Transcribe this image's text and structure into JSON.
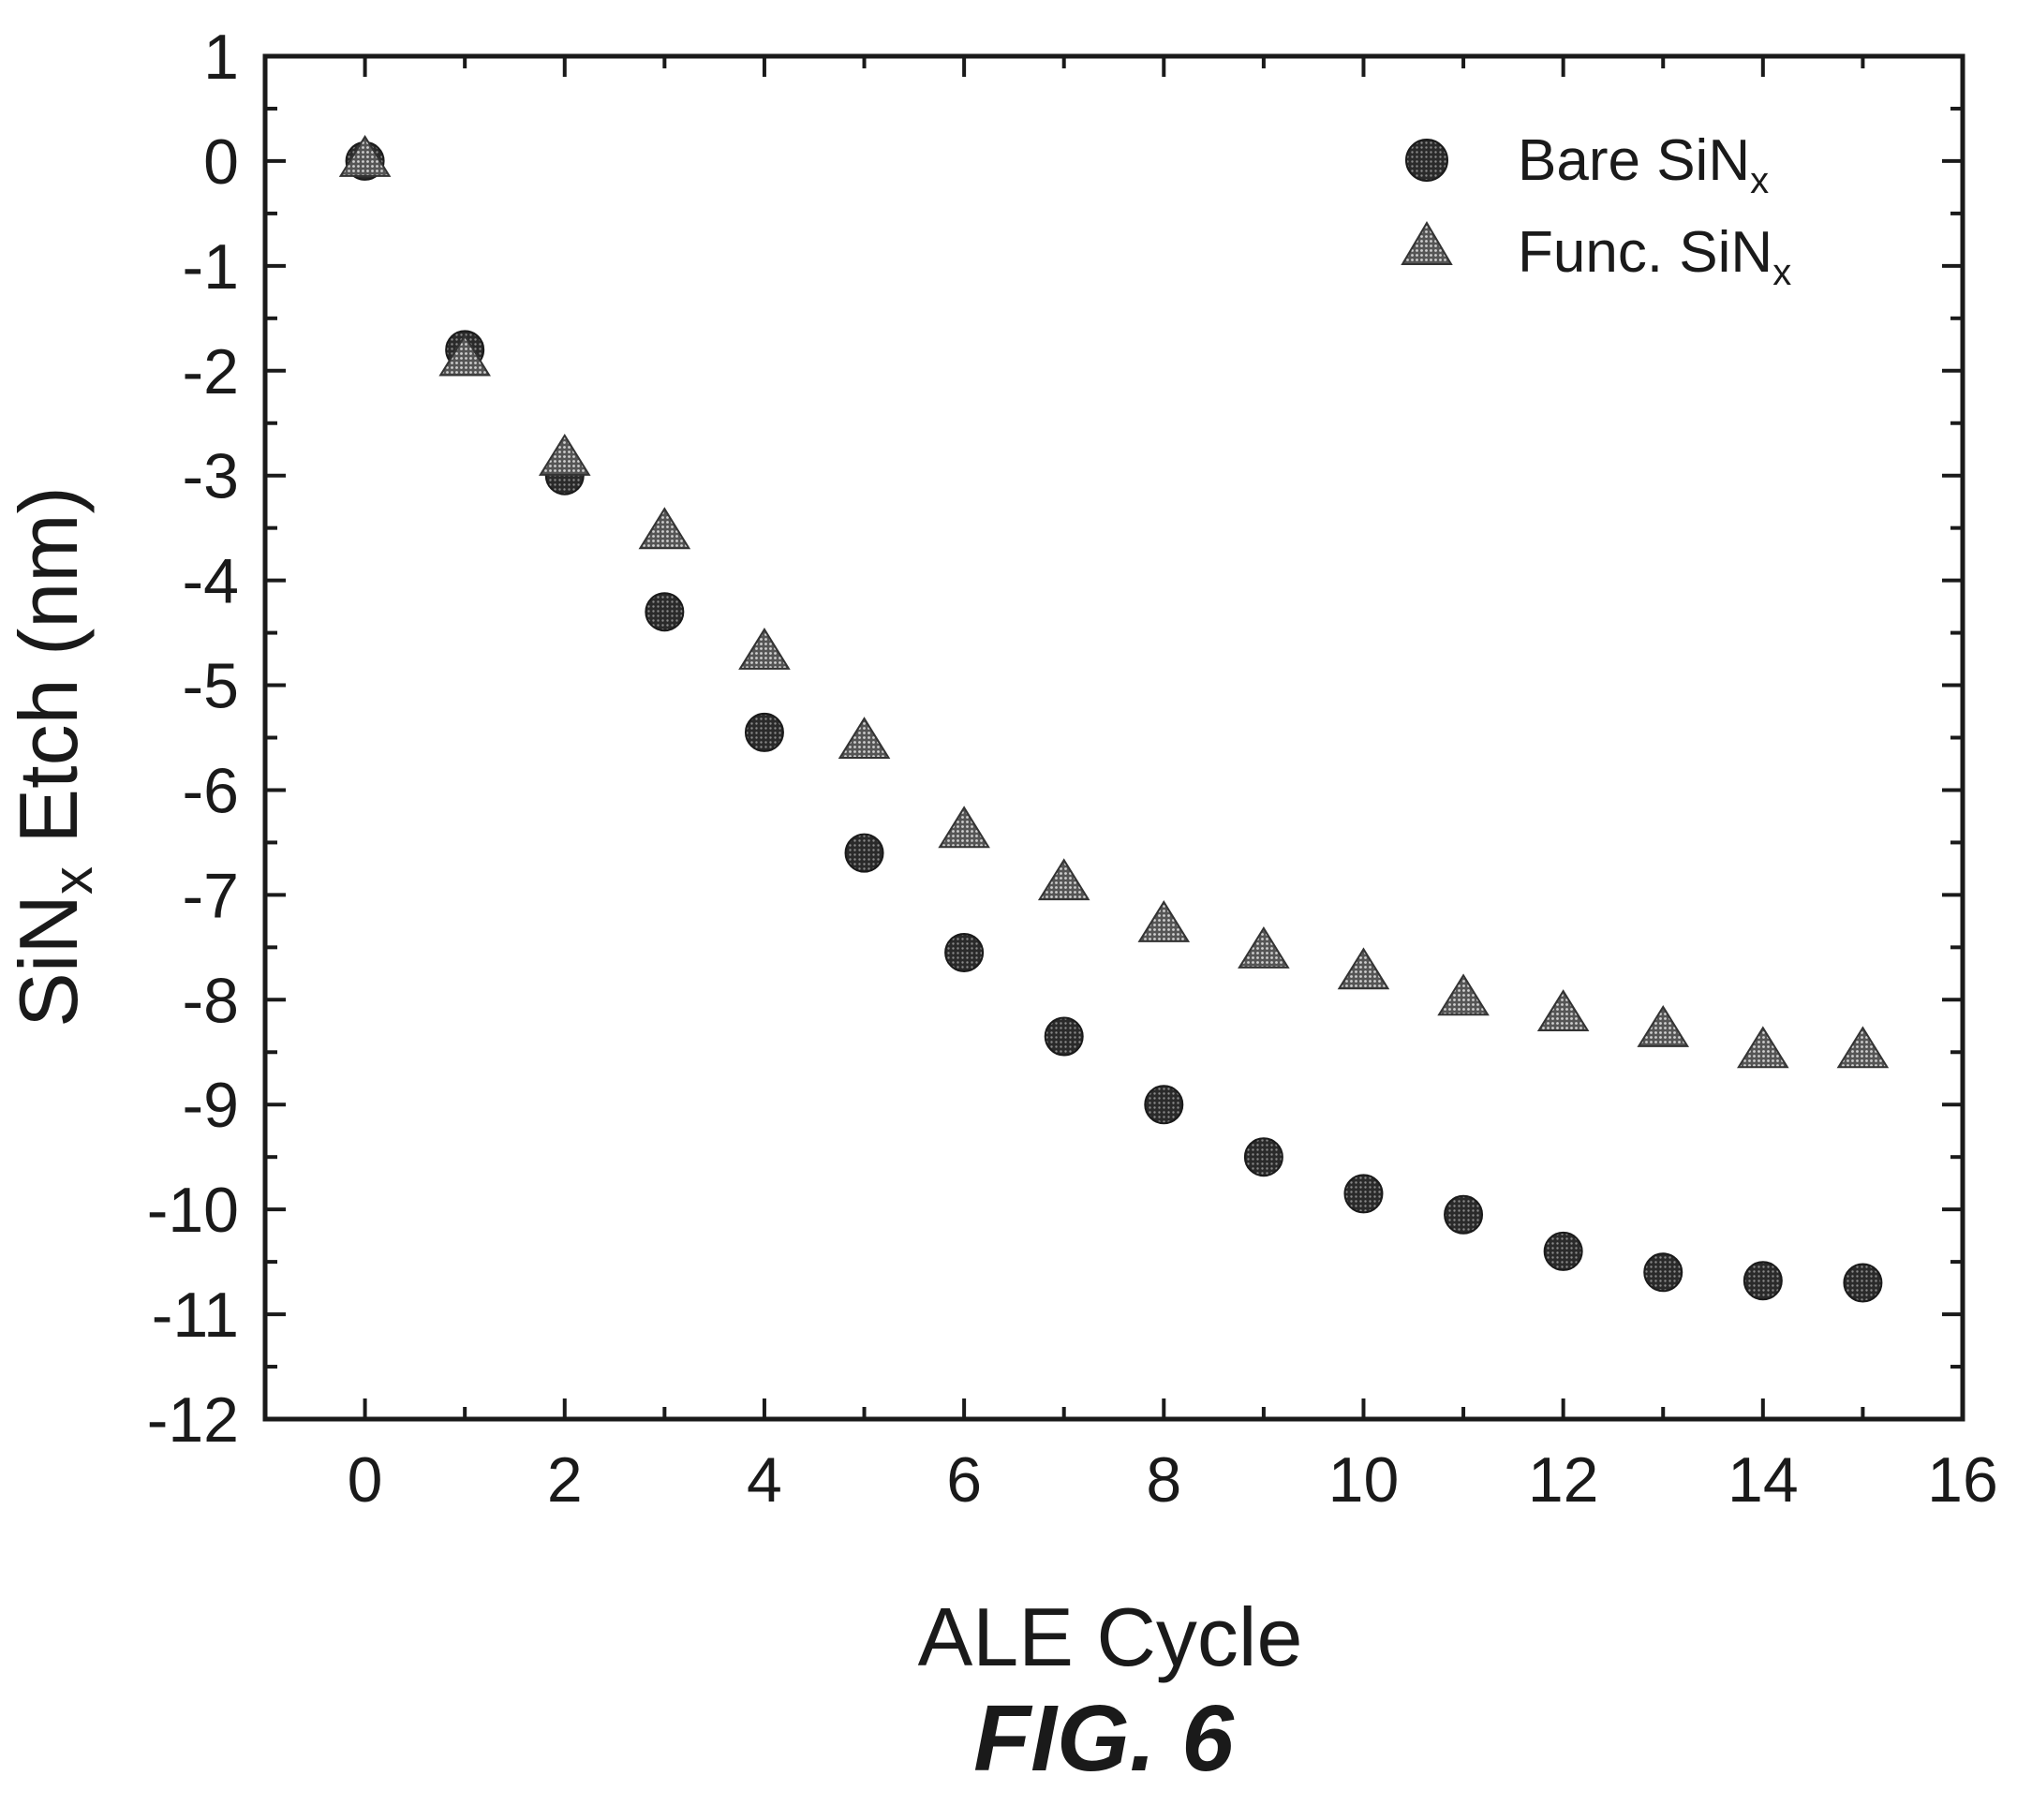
{
  "chart_data": {
    "type": "scatter",
    "xlabel": "ALE Cycle",
    "ylabel": {
      "base": "SiN",
      "sub": "x",
      "rest": " Etch (nm)"
    },
    "xlim": [
      -1,
      16
    ],
    "ylim": [
      -12,
      1
    ],
    "x_ticks": [
      0,
      2,
      4,
      6,
      8,
      10,
      12,
      14,
      16
    ],
    "y_ticks": [
      1,
      0,
      -1,
      -2,
      -3,
      -4,
      -5,
      -6,
      -7,
      -8,
      -9,
      -10,
      -11,
      -12
    ],
    "legend_position": "top-right",
    "series": [
      {
        "name": {
          "base": "Bare SiN",
          "sub": "x"
        },
        "marker": "circle",
        "color": "#333333",
        "x": [
          0,
          1,
          2,
          3,
          4,
          5,
          6,
          7,
          8,
          9,
          10,
          11,
          12,
          13,
          14,
          15
        ],
        "y": [
          0,
          -1.8,
          -3.0,
          -4.3,
          -5.45,
          -6.6,
          -7.55,
          -8.35,
          -9.0,
          -9.5,
          -9.85,
          -10.05,
          -10.4,
          -10.6,
          -10.68,
          -10.7
        ]
      },
      {
        "name": {
          "base": "Func. SiN",
          "sub": "x"
        },
        "marker": "triangle",
        "color": "#666666",
        "x": [
          0,
          1,
          2,
          3,
          4,
          5,
          6,
          7,
          8,
          9,
          10,
          11,
          12,
          13,
          14,
          15
        ],
        "y": [
          0,
          -1.9,
          -2.85,
          -3.55,
          -4.7,
          -5.55,
          -6.4,
          -6.9,
          -7.3,
          -7.55,
          -7.75,
          -8.0,
          -8.15,
          -8.3,
          -8.5,
          -8.5
        ]
      }
    ]
  },
  "figure_label": "FIG. 6"
}
